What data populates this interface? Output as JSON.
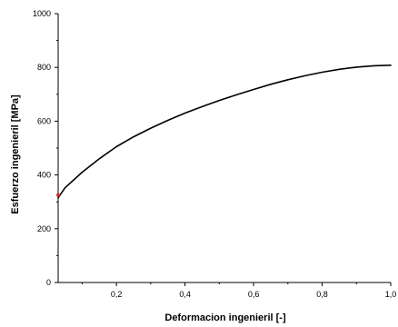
{
  "chart_data": {
    "type": "line",
    "title": "",
    "xlabel": "Deformacion ingenieril [-]",
    "ylabel": "Esfuerzo ingenieril [MPa]",
    "xlim": [
      0.03,
      1.0
    ],
    "ylim": [
      0,
      1000
    ],
    "x_ticks": [
      0.2,
      0.4,
      0.6,
      0.8,
      1.0
    ],
    "x_tick_labels": [
      "0,2",
      "0,4",
      "0,6",
      "0,8",
      "1,0"
    ],
    "y_ticks": [
      0,
      200,
      400,
      600,
      800,
      1000
    ],
    "y_tick_labels": [
      "0",
      "200",
      "400",
      "600",
      "800",
      "1000"
    ],
    "grid": false,
    "series": [
      {
        "name": "",
        "color": "#000000",
        "x": [
          0.03,
          0.05,
          0.1,
          0.15,
          0.2,
          0.25,
          0.3,
          0.35,
          0.4,
          0.45,
          0.5,
          0.55,
          0.6,
          0.65,
          0.7,
          0.75,
          0.8,
          0.85,
          0.9,
          0.95,
          1.0
        ],
        "y": [
          315,
          352,
          410,
          460,
          505,
          542,
          574,
          603,
          630,
          654,
          677,
          698,
          718,
          737,
          754,
          769,
          782,
          793,
          801,
          806,
          808
        ]
      }
    ],
    "markers": [
      {
        "x": 0.03,
        "y": 325,
        "color": "#d62728"
      }
    ]
  }
}
